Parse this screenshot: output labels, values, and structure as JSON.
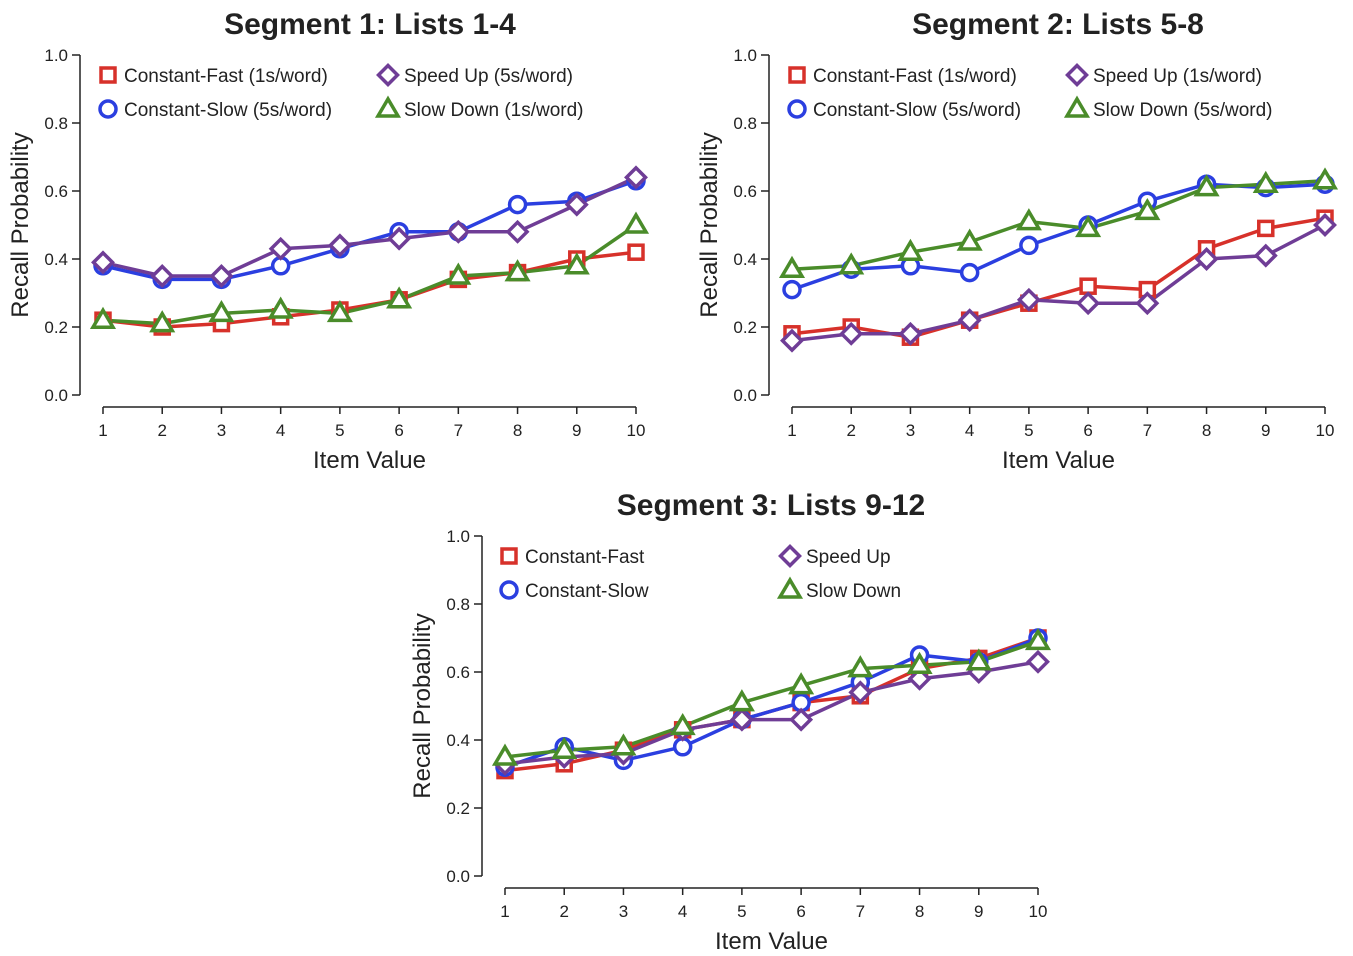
{
  "series_styles": [
    {
      "key": "constant_fast",
      "marker": "square",
      "color": "#d7312a"
    },
    {
      "key": "constant_slow",
      "marker": "circle",
      "color": "#2b3fe0"
    },
    {
      "key": "speed_up",
      "marker": "diamond",
      "color": "#6f3d96"
    },
    {
      "key": "slow_down",
      "marker": "triangle",
      "color": "#4a8c2a"
    }
  ],
  "chart_data": [
    {
      "type": "line",
      "title": "Segment 1: Lists 1-4",
      "xlabel": "Item Value",
      "ylabel": "Recall Probability",
      "x": [
        1,
        2,
        3,
        4,
        5,
        6,
        7,
        8,
        9,
        10
      ],
      "xticks": [
        "1",
        "2",
        "3",
        "4",
        "5",
        "6",
        "7",
        "8",
        "9",
        "10"
      ],
      "ylim": [
        0,
        1
      ],
      "yticks": [
        "0.0",
        "0.2",
        "0.4",
        "0.6",
        "0.8",
        "1.0"
      ],
      "legend_position": "top-left",
      "series": [
        {
          "name": "Constant-Fast (1s/word)",
          "marker": "square",
          "color": "#d7312a",
          "values": [
            0.22,
            0.2,
            0.21,
            0.23,
            0.25,
            0.28,
            0.34,
            0.36,
            0.4,
            0.42
          ]
        },
        {
          "name": "Constant-Slow (5s/word)",
          "marker": "circle",
          "color": "#2b3fe0",
          "values": [
            0.38,
            0.34,
            0.34,
            0.38,
            0.43,
            0.48,
            0.48,
            0.56,
            0.57,
            0.63
          ]
        },
        {
          "name": "Speed Up (5s/word)",
          "marker": "diamond",
          "color": "#6f3d96",
          "values": [
            0.39,
            0.35,
            0.35,
            0.43,
            0.44,
            0.46,
            0.48,
            0.48,
            0.56,
            0.64
          ]
        },
        {
          "name": "Slow Down (1s/word)",
          "marker": "triangle",
          "color": "#4a8c2a",
          "values": [
            0.22,
            0.21,
            0.24,
            0.25,
            0.24,
            0.28,
            0.35,
            0.36,
            0.38,
            0.5
          ]
        }
      ]
    },
    {
      "type": "line",
      "title": "Segment 2: Lists 5-8",
      "xlabel": "Item Value",
      "ylabel": "Recall Probability",
      "x": [
        1,
        2,
        3,
        4,
        5,
        6,
        7,
        8,
        9,
        10
      ],
      "xticks": [
        "1",
        "2",
        "3",
        "4",
        "5",
        "6",
        "7",
        "8",
        "9",
        "10"
      ],
      "ylim": [
        0,
        1
      ],
      "yticks": [
        "0.0",
        "0.2",
        "0.4",
        "0.6",
        "0.8",
        "1.0"
      ],
      "legend_position": "top-left",
      "series": [
        {
          "name": "Constant-Fast (1s/word)",
          "marker": "square",
          "color": "#d7312a",
          "values": [
            0.18,
            0.2,
            0.17,
            0.22,
            0.27,
            0.32,
            0.31,
            0.43,
            0.49,
            0.52
          ]
        },
        {
          "name": "Constant-Slow (5s/word)",
          "marker": "circle",
          "color": "#2b3fe0",
          "values": [
            0.31,
            0.37,
            0.38,
            0.36,
            0.44,
            0.5,
            0.57,
            0.62,
            0.61,
            0.62
          ]
        },
        {
          "name": "Speed Up (1s/word)",
          "marker": "diamond",
          "color": "#6f3d96",
          "values": [
            0.16,
            0.18,
            0.18,
            0.22,
            0.28,
            0.27,
            0.27,
            0.4,
            0.41,
            0.5
          ]
        },
        {
          "name": "Slow Down (5s/word)",
          "marker": "triangle",
          "color": "#4a8c2a",
          "values": [
            0.37,
            0.38,
            0.42,
            0.45,
            0.51,
            0.49,
            0.54,
            0.61,
            0.62,
            0.63
          ]
        }
      ]
    },
    {
      "type": "line",
      "title": "Segment 3: Lists 9-12",
      "xlabel": "Item Value",
      "ylabel": "Recall Probability",
      "x": [
        1,
        2,
        3,
        4,
        5,
        6,
        7,
        8,
        9,
        10
      ],
      "xticks": [
        "1",
        "2",
        "3",
        "4",
        "5",
        "6",
        "7",
        "8",
        "9",
        "10"
      ],
      "ylim": [
        0,
        1
      ],
      "yticks": [
        "0.0",
        "0.2",
        "0.4",
        "0.6",
        "0.8",
        "1.0"
      ],
      "legend_position": "top-left",
      "series": [
        {
          "name": "Constant-Fast",
          "marker": "square",
          "color": "#d7312a",
          "values": [
            0.31,
            0.33,
            0.37,
            0.43,
            0.46,
            0.51,
            0.53,
            0.61,
            0.64,
            0.7
          ]
        },
        {
          "name": "Constant-Slow",
          "marker": "circle",
          "color": "#2b3fe0",
          "values": [
            0.32,
            0.38,
            0.34,
            0.38,
            0.46,
            0.51,
            0.57,
            0.65,
            0.63,
            0.7
          ]
        },
        {
          "name": "Speed Up",
          "marker": "diamond",
          "color": "#6f3d96",
          "values": [
            0.33,
            0.35,
            0.36,
            0.43,
            0.46,
            0.46,
            0.54,
            0.58,
            0.6,
            0.63
          ]
        },
        {
          "name": "Slow Down",
          "marker": "triangle",
          "color": "#4a8c2a",
          "values": [
            0.35,
            0.37,
            0.38,
            0.44,
            0.51,
            0.56,
            0.61,
            0.62,
            0.63,
            0.69
          ]
        }
      ]
    }
  ]
}
